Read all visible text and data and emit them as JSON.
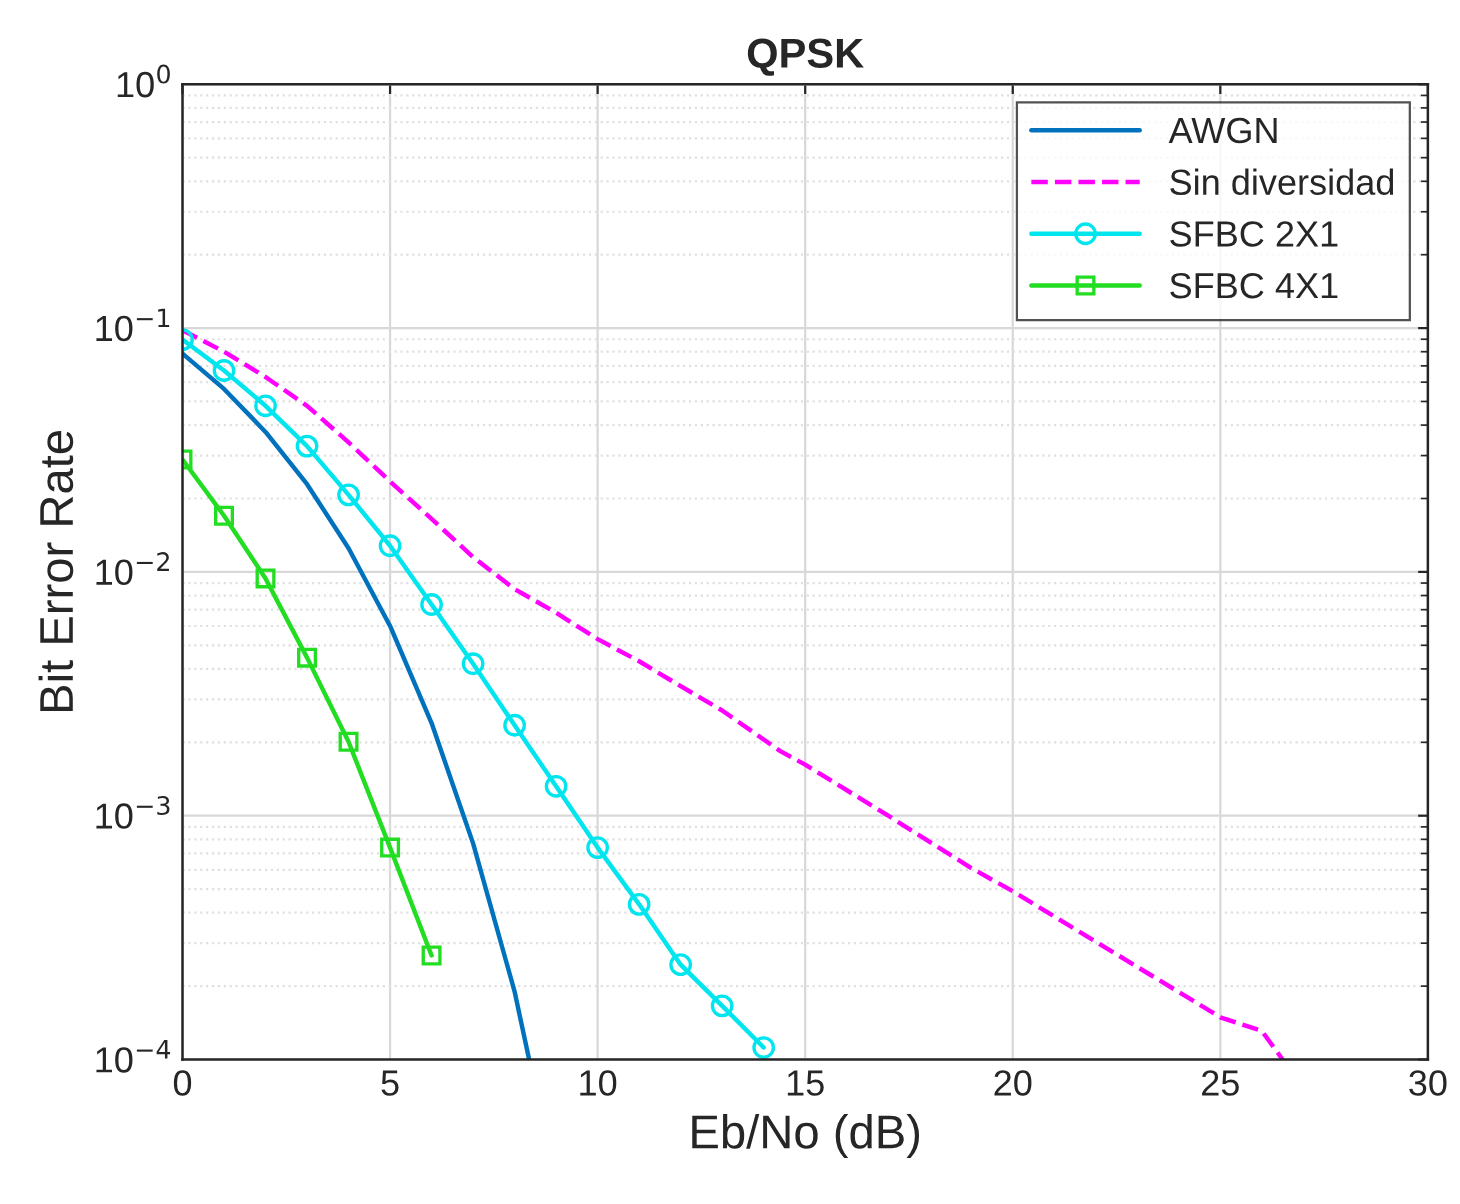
{
  "chart_data": {
    "type": "line",
    "title": "QPSK",
    "xlabel": "Eb/No (dB)",
    "ylabel": "Bit Error Rate",
    "log": "y",
    "grid": true,
    "legend": "top right",
    "xlim": [
      0,
      30
    ],
    "xticks": [
      0,
      5,
      10,
      15,
      20,
      25,
      30
    ],
    "ylim": [
      0.0001,
      1
    ],
    "yticks": [
      {
        "value": 0.0001,
        "label": "10$^{−4}$"
      },
      {
        "value": 0.001,
        "label": "10$^{−3}$"
      },
      {
        "value": 0.01,
        "label": "10$^{−2}$"
      },
      {
        "value": 0.1,
        "label": "10$^{−1}$"
      },
      {
        "value": 1,
        "label": "10$^{0}$"
      }
    ],
    "series": [
      {
        "name": "AWGN",
        "color": "#0072bd",
        "line_style": "solid",
        "marker": "none",
        "x": [
          0,
          1,
          2,
          3,
          4,
          5,
          6,
          7,
          8,
          8.35
        ],
        "values": [
          0.0786,
          0.0563,
          0.0375,
          0.0229,
          0.0125,
          0.006,
          0.0024,
          0.00077,
          0.00019,
          0.0001
        ]
      },
      {
        "name": "Sin diversidad",
        "color": "#ff00ff",
        "line_style": "dashed",
        "marker": "none",
        "x": [
          0,
          1,
          2,
          3,
          4,
          5,
          6,
          7,
          8,
          9,
          10,
          11,
          12,
          13,
          14.4,
          15,
          17,
          19,
          20,
          25,
          26,
          26.5
        ],
        "values": [
          0.098,
          0.08,
          0.063,
          0.048,
          0.034,
          0.0235,
          0.0165,
          0.0115,
          0.0085,
          0.0068,
          0.0053,
          0.0043,
          0.0034,
          0.0027,
          0.00184,
          0.00162,
          0.001,
          0.00061,
          0.00049,
          0.000149,
          0.000131,
          0.0001
        ]
      },
      {
        "name": "SFBC 2X1",
        "color": "#00e5ee",
        "line_style": "solid",
        "marker": "circle",
        "x": [
          0,
          1,
          2,
          3,
          4,
          5,
          6,
          7,
          8,
          9,
          10,
          11,
          12,
          13,
          14
        ],
        "values": [
          0.0897,
          0.067,
          0.048,
          0.0328,
          0.0207,
          0.0128,
          0.00735,
          0.0042,
          0.00235,
          0.00132,
          0.00074,
          0.000433,
          0.000245,
          0.000166,
          0.000112
        ]
      },
      {
        "name": "SFBC 4X1",
        "color": "#22dd22",
        "line_style": "solid",
        "marker": "square",
        "x": [
          0,
          1,
          2,
          3,
          4,
          5,
          6
        ],
        "values": [
          0.0289,
          0.017,
          0.0094,
          0.00445,
          0.00201,
          0.00074,
          0.000267
        ]
      }
    ]
  }
}
